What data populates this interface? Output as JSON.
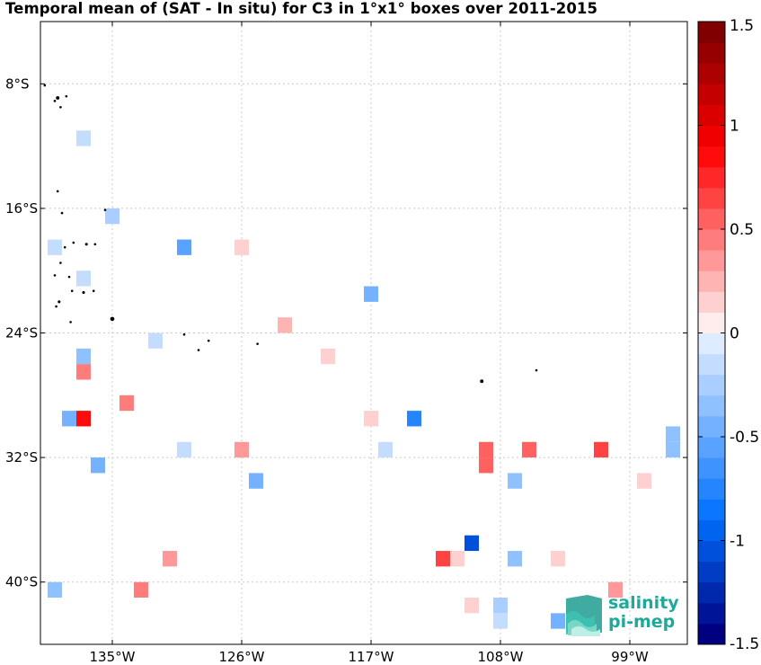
{
  "title": "Temporal mean of (SAT - In situ) for C3 in 1°x1° boxes over 2011-2015",
  "map": {
    "lon_range": [
      -140,
      -95
    ],
    "lat_range": [
      -44,
      -4
    ],
    "lat_ticks": [
      {
        "value": -8,
        "label": "8°S"
      },
      {
        "value": -16,
        "label": "16°S"
      },
      {
        "value": -24,
        "label": "24°S"
      },
      {
        "value": -32,
        "label": "32°S"
      },
      {
        "value": -40,
        "label": "40°S"
      }
    ],
    "lon_ticks": [
      {
        "value": -135,
        "label": "135°W"
      },
      {
        "value": -126,
        "label": "126°W"
      },
      {
        "value": -117,
        "label": "117°W"
      },
      {
        "value": -108,
        "label": "108°W"
      },
      {
        "value": -99,
        "label": "99°W"
      }
    ],
    "grid": "dotted",
    "islands_color": "#000000"
  },
  "colorbar": {
    "range": [
      -1.5,
      1.5
    ],
    "steps": 30,
    "ticks": [
      {
        "value": 1.5,
        "label": "1.5"
      },
      {
        "value": 1,
        "label": "1"
      },
      {
        "value": 0.5,
        "label": "0.5"
      },
      {
        "value": 0,
        "label": "0"
      },
      {
        "value": -0.5,
        "label": "-0.5"
      },
      {
        "value": -1,
        "label": "-1"
      },
      {
        "value": -1.5,
        "label": "-1.5"
      }
    ],
    "colormap": "blue-white-red"
  },
  "chart_data": {
    "type": "heatmap",
    "title": "Temporal mean of (SAT - In situ) for C3 in 1°x1° boxes over 2011-2015",
    "xlabel": "",
    "ylabel": "",
    "x_unit": "longitude",
    "y_unit": "latitude",
    "cells": [
      {
        "lon": -137,
        "lat": -11.5,
        "value": -0.15
      },
      {
        "lon": -135,
        "lat": -16.5,
        "value": -0.25
      },
      {
        "lon": -139,
        "lat": -18.5,
        "value": -0.15
      },
      {
        "lon": -130,
        "lat": -18.5,
        "value": -0.6
      },
      {
        "lon": -126,
        "lat": -18.5,
        "value": 0.15
      },
      {
        "lon": -137,
        "lat": -20.5,
        "value": -0.15
      },
      {
        "lon": -117,
        "lat": -21.5,
        "value": -0.45
      },
      {
        "lon": -123,
        "lat": -23.5,
        "value": 0.2
      },
      {
        "lon": -132,
        "lat": -24.5,
        "value": -0.2
      },
      {
        "lon": -120,
        "lat": -25.5,
        "value": 0.15
      },
      {
        "lon": -137,
        "lat": -25.5,
        "value": -0.3
      },
      {
        "lon": -137,
        "lat": -26.5,
        "value": 0.4
      },
      {
        "lon": -134,
        "lat": -28.5,
        "value": 0.45
      },
      {
        "lon": -138,
        "lat": -29.5,
        "value": -0.5
      },
      {
        "lon": -137,
        "lat": -29.5,
        "value": 0.8
      },
      {
        "lon": -114,
        "lat": -29.5,
        "value": -0.75
      },
      {
        "lon": -117,
        "lat": -29.5,
        "value": 0.1
      },
      {
        "lon": -130,
        "lat": -31.5,
        "value": -0.1
      },
      {
        "lon": -126,
        "lat": -31.5,
        "value": 0.3
      },
      {
        "lon": -116,
        "lat": -31.5,
        "value": -0.1
      },
      {
        "lon": -109,
        "lat": -31.5,
        "value": 0.5
      },
      {
        "lon": -106,
        "lat": -31.5,
        "value": 0.55
      },
      {
        "lon": -101,
        "lat": -31.5,
        "value": 0.6
      },
      {
        "lon": -96,
        "lat": -30.5,
        "value": -0.3
      },
      {
        "lon": -96,
        "lat": -31.5,
        "value": -0.3
      },
      {
        "lon": -136,
        "lat": -32.5,
        "value": -0.5
      },
      {
        "lon": -109,
        "lat": -32.5,
        "value": 0.5
      },
      {
        "lon": -125,
        "lat": -33.5,
        "value": -0.45
      },
      {
        "lon": -107,
        "lat": -33.5,
        "value": -0.3
      },
      {
        "lon": -98,
        "lat": -33.5,
        "value": 0.15
      },
      {
        "lon": -110,
        "lat": -37.5,
        "value": -1.05
      },
      {
        "lon": -112,
        "lat": -38.5,
        "value": 0.65
      },
      {
        "lon": -111,
        "lat": -38.5,
        "value": 0.15
      },
      {
        "lon": -131,
        "lat": -38.5,
        "value": 0.3
      },
      {
        "lon": -107,
        "lat": -38.5,
        "value": -0.3
      },
      {
        "lon": -104,
        "lat": -38.5,
        "value": 0.15
      },
      {
        "lon": -139,
        "lat": -40.5,
        "value": -0.4
      },
      {
        "lon": -133,
        "lat": -40.5,
        "value": 0.45
      },
      {
        "lon": -100,
        "lat": -40.5,
        "value": 0.3
      },
      {
        "lon": -110,
        "lat": -41.5,
        "value": 0.15
      },
      {
        "lon": -108,
        "lat": -41.5,
        "value": -0.25
      },
      {
        "lon": -108,
        "lat": -42.5,
        "value": -0.1
      },
      {
        "lon": -104,
        "lat": -42.5,
        "value": -0.45
      }
    ]
  },
  "islands": [
    {
      "lon": -139.7,
      "lat": -8.1,
      "size": 1
    },
    {
      "lon": -138.8,
      "lat": -8.9,
      "size": 1.5
    },
    {
      "lon": -139.0,
      "lat": -9.1,
      "size": 1
    },
    {
      "lon": -138.6,
      "lat": -9.5,
      "size": 1
    },
    {
      "lon": -138.2,
      "lat": -8.8,
      "size": 1
    },
    {
      "lon": -138.8,
      "lat": -14.9,
      "size": 1
    },
    {
      "lon": -138.5,
      "lat": -16.3,
      "size": 1
    },
    {
      "lon": -136.8,
      "lat": -18.3,
      "size": 1.2
    },
    {
      "lon": -138.3,
      "lat": -18.5,
      "size": 1
    },
    {
      "lon": -135.5,
      "lat": -16.1,
      "size": 1
    },
    {
      "lon": -137.7,
      "lat": -18.2,
      "size": 1
    },
    {
      "lon": -136.2,
      "lat": -18.3,
      "size": 1
    },
    {
      "lon": -138.6,
      "lat": -19.5,
      "size": 1
    },
    {
      "lon": -138.0,
      "lat": -20.4,
      "size": 1
    },
    {
      "lon": -139.0,
      "lat": -20.3,
      "size": 1
    },
    {
      "lon": -136.3,
      "lat": -21.3,
      "size": 1
    },
    {
      "lon": -137.8,
      "lat": -21.3,
      "size": 1
    },
    {
      "lon": -137.0,
      "lat": -21.4,
      "size": 1.2
    },
    {
      "lon": -138.7,
      "lat": -22.0,
      "size": 1.2
    },
    {
      "lon": -138.9,
      "lat": -22.3,
      "size": 1
    },
    {
      "lon": -137.9,
      "lat": -23.3,
      "size": 1
    },
    {
      "lon": -135.0,
      "lat": -23.1,
      "size": 1.8
    },
    {
      "lon": -130.0,
      "lat": -24.1,
      "size": 1
    },
    {
      "lon": -128.3,
      "lat": -24.5,
      "size": 1
    },
    {
      "lon": -124.9,
      "lat": -24.7,
      "size": 1
    },
    {
      "lon": -129.0,
      "lat": -25.1,
      "size": 1
    },
    {
      "lon": -109.3,
      "lat": -27.1,
      "size": 1.5
    },
    {
      "lon": -105.5,
      "lat": -26.4,
      "size": 1
    }
  ]
}
